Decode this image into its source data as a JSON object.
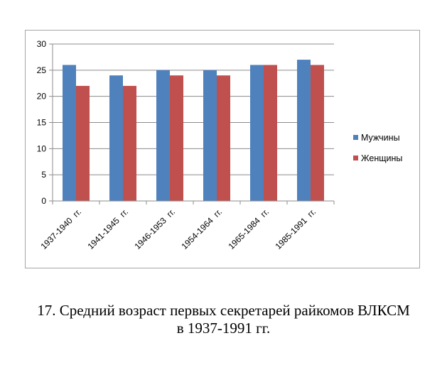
{
  "chart_data": {
    "type": "bar",
    "categories": [
      "1937-1940  гг.",
      "1941-1945  гг.",
      "1946-1953  гг.",
      "1954-1964  гг.",
      "1965-1984  гг.",
      "1985-1991  гг."
    ],
    "series": [
      {
        "name": "Мужчины",
        "values": [
          26,
          24,
          25,
          25,
          26,
          27
        ],
        "color": "#4f81bd"
      },
      {
        "name": "Женщины",
        "values": [
          22,
          22,
          24,
          24,
          26,
          26
        ],
        "color": "#c0504d"
      }
    ],
    "ylim": [
      0,
      30
    ],
    "yticks": [
      0,
      5,
      10,
      15,
      20,
      25,
      30
    ],
    "grid": true,
    "legend": "right",
    "title": "",
    "xlabel": "",
    "ylabel": ""
  },
  "caption": {
    "line1": "17. Средний возраст первых секретарей райкомов ВЛКСМ",
    "line2": "в 1937-1991 гг."
  }
}
